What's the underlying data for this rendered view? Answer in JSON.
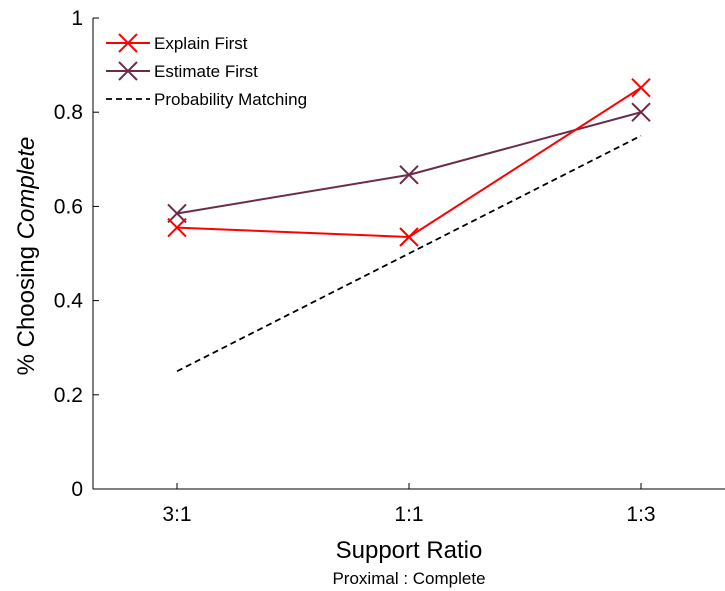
{
  "chart_data": {
    "type": "line",
    "categories": [
      "3:1",
      "1:1",
      "1:3"
    ],
    "series": [
      {
        "name": "Explain First",
        "values": [
          0.555,
          0.535,
          0.852
        ],
        "color": "#ff0000",
        "marker": "x",
        "line": "solid"
      },
      {
        "name": "Estimate First",
        "values": [
          0.585,
          0.667,
          0.8
        ],
        "color": "#6b2c4c",
        "marker": "x",
        "line": "solid"
      },
      {
        "name": "Probability Matching",
        "values": [
          0.25,
          0.5,
          0.75
        ],
        "color": "#000000",
        "marker": "none",
        "line": "dashed"
      }
    ],
    "xlabel": "Support Ratio",
    "xsublabel": "Proximal : Complete",
    "ylabel_prefix": "% Choosing ",
    "ylabel_emphasis": "Complete",
    "ylim": [
      0,
      1
    ],
    "yticks": [
      0,
      0.2,
      0.4,
      0.6,
      0.8,
      1
    ],
    "ytick_labels": [
      "0",
      "0.2",
      "0.4",
      "0.6",
      "0.8",
      "1"
    ],
    "grid": false,
    "legend_position": "top-left"
  }
}
